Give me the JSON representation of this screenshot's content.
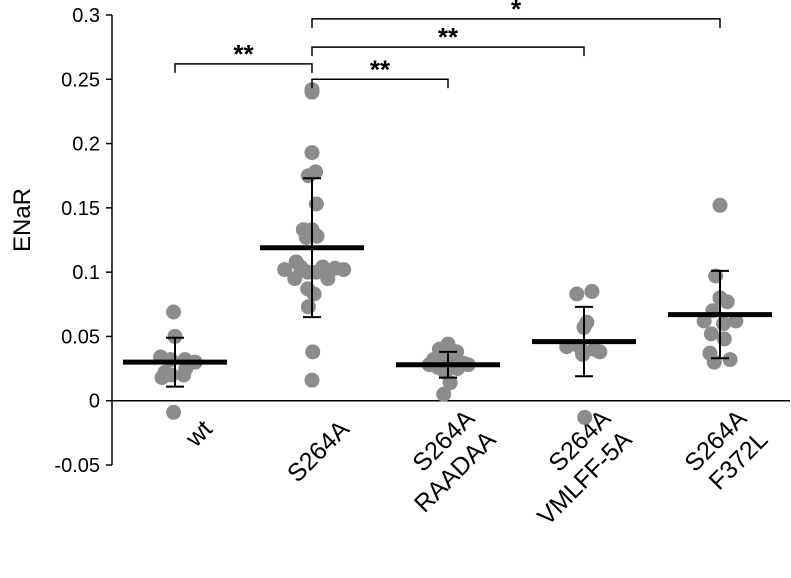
{
  "chart_data": {
    "type": "scatter",
    "ylabel": "ENaR",
    "ylim": [
      -0.05,
      0.3
    ],
    "yticks": [
      -0.05,
      0,
      0.05,
      0.1,
      0.15,
      0.2,
      0.25,
      0.3
    ],
    "ytick_labels": [
      "-0.05",
      "0",
      "0.05",
      "0.1",
      "0.15",
      "0.2",
      "0.25",
      "0.3"
    ],
    "grid": false,
    "groups": [
      {
        "label_lines": [
          "wt"
        ],
        "mean": 0.03,
        "err_low": 0.011,
        "err_high": 0.049,
        "points": [
          [
            -0.02,
            0.069
          ],
          [
            0.0,
            0.05
          ],
          [
            -0.2,
            0.034
          ],
          [
            -0.06,
            0.032
          ],
          [
            0.14,
            0.032
          ],
          [
            0.28,
            0.03
          ],
          [
            0.15,
            0.025
          ],
          [
            -0.14,
            0.022
          ],
          [
            -0.05,
            0.02
          ],
          [
            0.12,
            0.02
          ],
          [
            -0.18,
            0.018
          ],
          [
            -0.02,
            -0.009
          ]
        ]
      },
      {
        "label_lines": [
          "S264A"
        ],
        "mean": 0.119,
        "err_low": 0.065,
        "err_high": 0.173,
        "points": [
          [
            0.0,
            0.242
          ],
          [
            0.0,
            0.24
          ],
          [
            0.0,
            0.193
          ],
          [
            0.05,
            0.178
          ],
          [
            -0.05,
            0.175
          ],
          [
            0.06,
            0.153
          ],
          [
            -0.12,
            0.133
          ],
          [
            0.0,
            0.133
          ],
          [
            0.07,
            0.128
          ],
          [
            -0.08,
            0.127
          ],
          [
            -0.22,
            0.108
          ],
          [
            0.32,
            0.103
          ],
          [
            -0.16,
            0.104
          ],
          [
            0.15,
            0.104
          ],
          [
            -0.38,
            0.102
          ],
          [
            0.44,
            0.102
          ],
          [
            -0.06,
            0.1
          ],
          [
            0.06,
            0.1
          ],
          [
            -0.24,
            0.095
          ],
          [
            0.22,
            0.095
          ],
          [
            -0.06,
            0.087
          ],
          [
            0.03,
            0.083
          ],
          [
            -0.05,
            0.073
          ],
          [
            0.01,
            0.038
          ],
          [
            0.0,
            0.016
          ]
        ]
      },
      {
        "label_lines": [
          "S264A",
          "RAADAA"
        ],
        "mean": 0.028,
        "err_low": 0.018,
        "err_high": 0.038,
        "points": [
          [
            0.0,
            0.044
          ],
          [
            -0.12,
            0.04
          ],
          [
            0.12,
            0.038
          ],
          [
            -0.2,
            0.032
          ],
          [
            -0.04,
            0.032
          ],
          [
            0.08,
            0.031
          ],
          [
            0.22,
            0.029
          ],
          [
            -0.26,
            0.028
          ],
          [
            0.28,
            0.028
          ],
          [
            -0.14,
            0.026
          ],
          [
            0.13,
            0.025
          ],
          [
            -0.04,
            0.022
          ],
          [
            0.03,
            0.014
          ],
          [
            -0.06,
            0.005
          ]
        ]
      },
      {
        "label_lines": [
          "S264A",
          "VMLFF-5A"
        ],
        "mean": 0.046,
        "err_low": 0.019,
        "err_high": 0.073,
        "points": [
          [
            -0.1,
            0.083
          ],
          [
            0.11,
            0.085
          ],
          [
            0.04,
            0.061
          ],
          [
            0.0,
            0.057
          ],
          [
            -0.24,
            0.042
          ],
          [
            -0.06,
            0.042
          ],
          [
            0.14,
            0.04
          ],
          [
            0.22,
            0.038
          ],
          [
            -0.02,
            0.036
          ],
          [
            0.01,
            -0.013
          ]
        ]
      },
      {
        "label_lines": [
          "S264A",
          "F372L"
        ],
        "mean": 0.067,
        "err_low": 0.033,
        "err_high": 0.101,
        "points": [
          [
            0.0,
            0.152
          ],
          [
            -0.06,
            0.097
          ],
          [
            0.0,
            0.08
          ],
          [
            0.1,
            0.077
          ],
          [
            -0.1,
            0.07
          ],
          [
            -0.22,
            0.062
          ],
          [
            0.22,
            0.062
          ],
          [
            0.05,
            0.06
          ],
          [
            -0.12,
            0.052
          ],
          [
            0.06,
            0.048
          ],
          [
            -0.14,
            0.037
          ],
          [
            0.14,
            0.032
          ],
          [
            -0.08,
            0.03
          ]
        ]
      }
    ],
    "significance": [
      {
        "from": 0,
        "to": 1,
        "y": 0.262,
        "label": "**"
      },
      {
        "from": 1,
        "to": 2,
        "y": 0.25,
        "label": "**"
      },
      {
        "from": 1,
        "to": 3,
        "y": 0.275,
        "label": "**"
      },
      {
        "from": 1,
        "to": 4,
        "y": 0.297,
        "label": "*"
      }
    ]
  }
}
